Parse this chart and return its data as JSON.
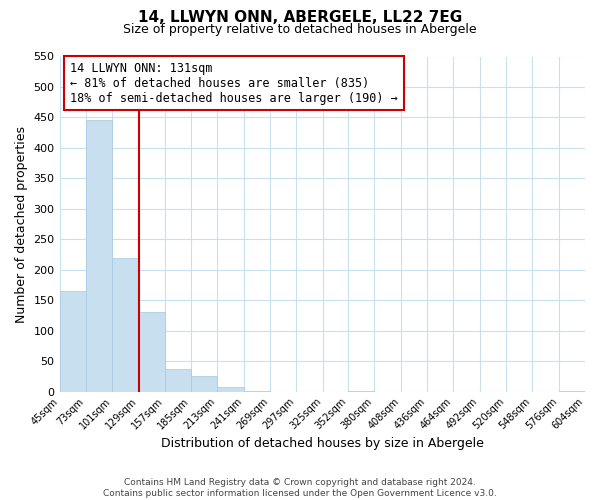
{
  "title": "14, LLWYN ONN, ABERGELE, LL22 7EG",
  "subtitle": "Size of property relative to detached houses in Abergele",
  "xlabel": "Distribution of detached houses by size in Abergele",
  "ylabel": "Number of detached properties",
  "bar_edges": [
    45,
    73,
    101,
    129,
    157,
    185,
    213,
    241,
    269,
    297,
    325,
    352,
    380,
    408,
    436,
    464,
    492,
    520,
    548,
    576,
    604
  ],
  "bar_heights": [
    165,
    445,
    220,
    130,
    37,
    26,
    8,
    1,
    0,
    0,
    0,
    1,
    0,
    0,
    0,
    0,
    0,
    0,
    0,
    1
  ],
  "bar_color": "#c8dff0",
  "bar_edgecolor": "#a8c8e0",
  "property_line_x": 129,
  "property_line_color": "#cc0000",
  "annotation_title": "14 LLWYN ONN: 131sqm",
  "annotation_line1": "← 81% of detached houses are smaller (835)",
  "annotation_line2": "18% of semi-detached houses are larger (190) →",
  "annotation_box_facecolor": "#ffffff",
  "annotation_box_edgecolor": "#cc0000",
  "ylim": [
    0,
    550
  ],
  "yticks": [
    0,
    50,
    100,
    150,
    200,
    250,
    300,
    350,
    400,
    450,
    500,
    550
  ],
  "footer1": "Contains HM Land Registry data © Crown copyright and database right 2024.",
  "footer2": "Contains public sector information licensed under the Open Government Licence v3.0.",
  "grid_color": "#c8dff0",
  "bg_color": "#ffffff"
}
